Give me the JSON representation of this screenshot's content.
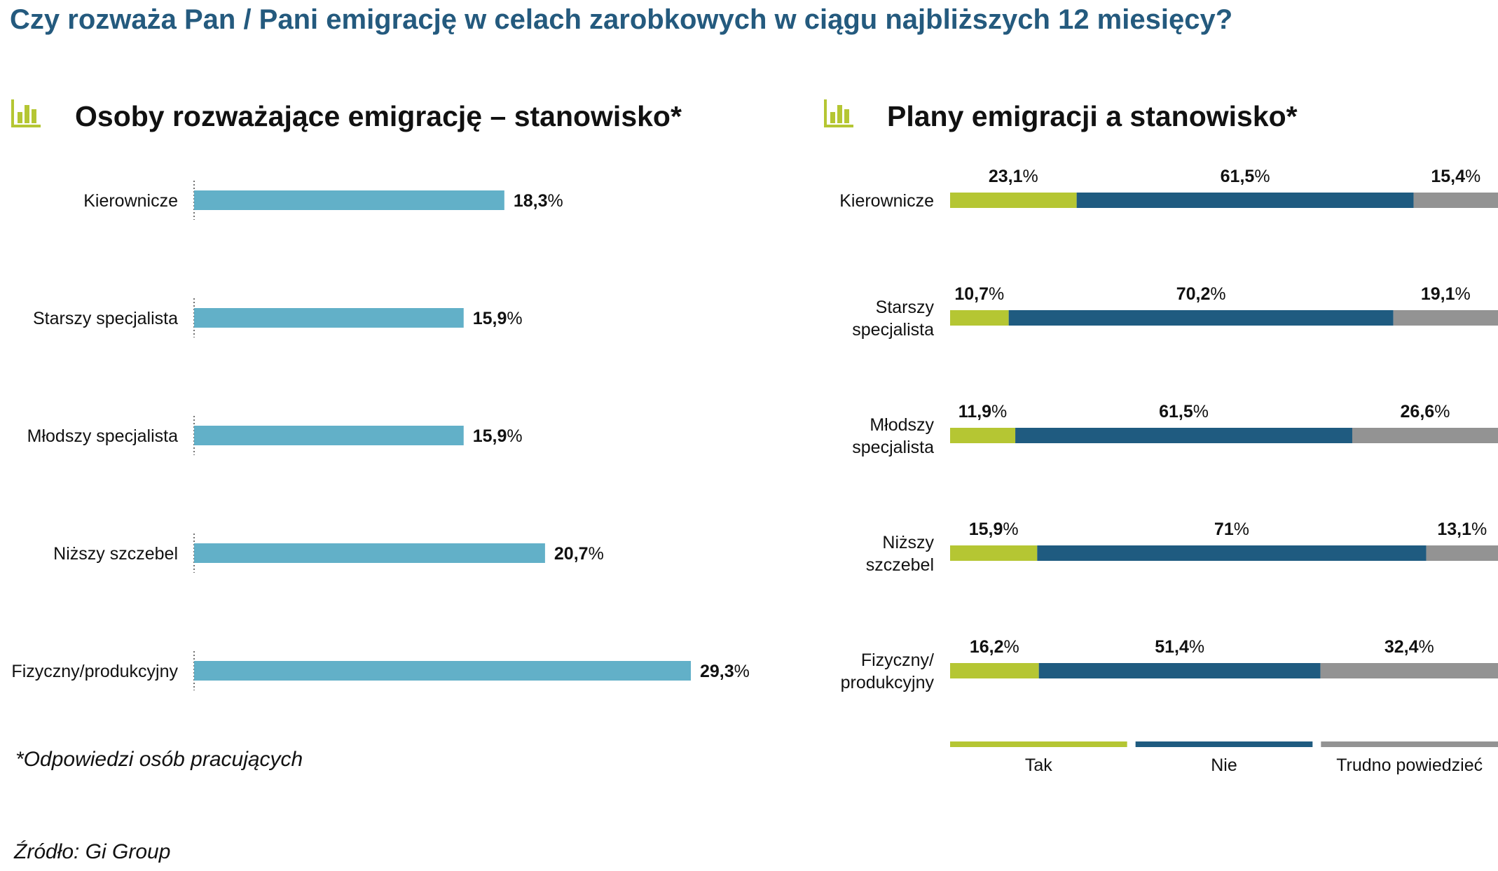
{
  "main_title": "Czy rozważa Pan / Pani emigrację w celach zarobkowych w ciągu najbliższych 12 miesięcy?",
  "icon": "bar-chart-icon",
  "colors": {
    "title": "#245a7e",
    "icon": "#b5c633",
    "bar": "#62b0c8",
    "tak": "#b5c633",
    "nie": "#1f5b80",
    "trudno": "#939393"
  },
  "footnote": "*Odpowiedzi osób pracujących",
  "source": "Źródło: Gi Group",
  "chart_data": [
    {
      "type": "bar",
      "orientation": "horizontal",
      "title": "Osoby rozważające emigrację – stanowisko*",
      "categories": [
        "Kierownicze",
        "Starszy specjalista",
        "Młodszy specjalista",
        "Niższy szczebel",
        "Fizyczny/produkcyjny"
      ],
      "values": [
        18.3,
        15.9,
        15.9,
        20.7,
        29.3
      ],
      "value_labels": [
        "18,3",
        "15,9",
        "15,9",
        "20,7",
        "29,3"
      ],
      "unit": "%",
      "xlim": [
        0,
        29.3
      ]
    },
    {
      "type": "bar",
      "orientation": "horizontal",
      "stacked": true,
      "title": "Plany emigracji a stanowisko*",
      "categories": [
        [
          "Kierownicze"
        ],
        [
          "Starszy",
          "specjalista"
        ],
        [
          "Młodszy",
          "specjalista"
        ],
        [
          "Niższy",
          "szczebel"
        ],
        [
          "Fizyczny/",
          "produkcyjny"
        ]
      ],
      "series": [
        {
          "name": "Tak",
          "values": [
            23.1,
            10.7,
            11.9,
            15.9,
            16.2
          ],
          "labels": [
            "23,1",
            "10,7",
            "11,9",
            "15,9",
            "16,2"
          ]
        },
        {
          "name": "Nie",
          "values": [
            61.5,
            70.2,
            61.5,
            71,
            51.4
          ],
          "labels": [
            "61,5",
            "70,2",
            "61,5",
            "71",
            "51,4"
          ]
        },
        {
          "name": "Trudno powiedzieć",
          "values": [
            15.4,
            19.1,
            26.6,
            13.1,
            32.4
          ],
          "labels": [
            "15,4",
            "19,1",
            "26,6",
            "13,1",
            "32,4"
          ]
        }
      ],
      "unit": "%",
      "xlim": [
        0,
        100
      ],
      "legend": "bottom"
    }
  ]
}
